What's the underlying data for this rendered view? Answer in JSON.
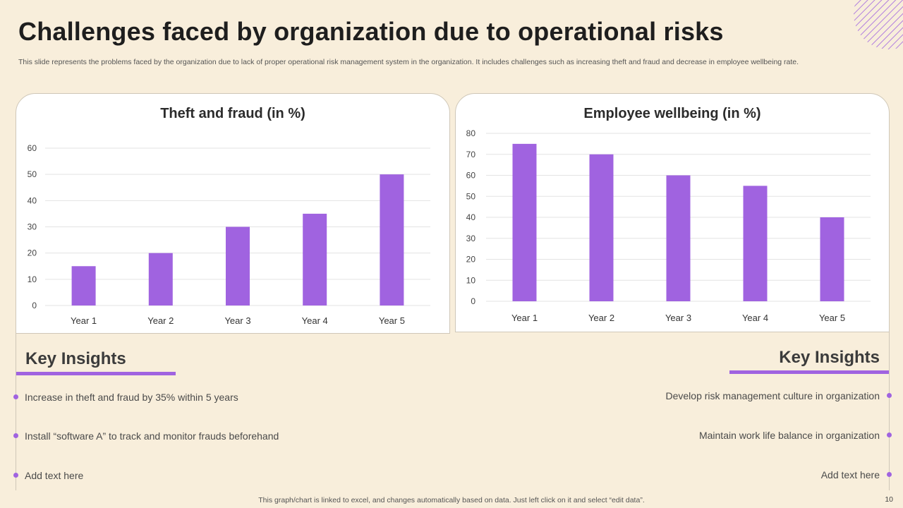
{
  "slide": {
    "title": "Challenges faced by organization due to operational risks",
    "subtitle": "This slide represents the problems faced by the organization due to lack of proper operational risk management system in the organization. It includes challenges such as increasing theft and fraud and decrease in employee wellbeing rate.",
    "footer": "This graph/chart is linked to excel, and changes automatically based on data. Just left click on it and select “edit data”.",
    "page_number": "10"
  },
  "colors": {
    "accent": "#a063e0",
    "background": "#f8eedb",
    "grid": "#e3e3e3"
  },
  "chart_data": [
    {
      "type": "bar",
      "title": "Theft and fraud (in %)",
      "categories": [
        "Year 1",
        "Year 2",
        "Year 3",
        "Year 4",
        "Year 5"
      ],
      "values": [
        15,
        20,
        30,
        35,
        50
      ],
      "ylim": [
        0,
        60
      ],
      "yticks": [
        0,
        10,
        20,
        30,
        40,
        50,
        60
      ],
      "xlabel": "",
      "ylabel": "",
      "grid": true
    },
    {
      "type": "bar",
      "title": "Employee  wellbeing (in %)",
      "categories": [
        "Year 1",
        "Year 2",
        "Year 3",
        "Year 4",
        "Year 5"
      ],
      "values": [
        75,
        70,
        60,
        55,
        40
      ],
      "ylim": [
        0,
        80
      ],
      "yticks": [
        0,
        10,
        20,
        30,
        40,
        50,
        60,
        70,
        80
      ],
      "xlabel": "",
      "ylabel": "",
      "grid": true
    }
  ],
  "insights_left": {
    "heading": "Key Insights",
    "items": [
      "Increase in theft and fraud by 35% within 5 years",
      "Install “software A” to track and monitor frauds beforehand",
      "Add text here"
    ]
  },
  "insights_right": {
    "heading": "Key Insights",
    "items": [
      "Develop risk management culture in organization",
      "Maintain work life balance in organization",
      "Add text here"
    ]
  }
}
